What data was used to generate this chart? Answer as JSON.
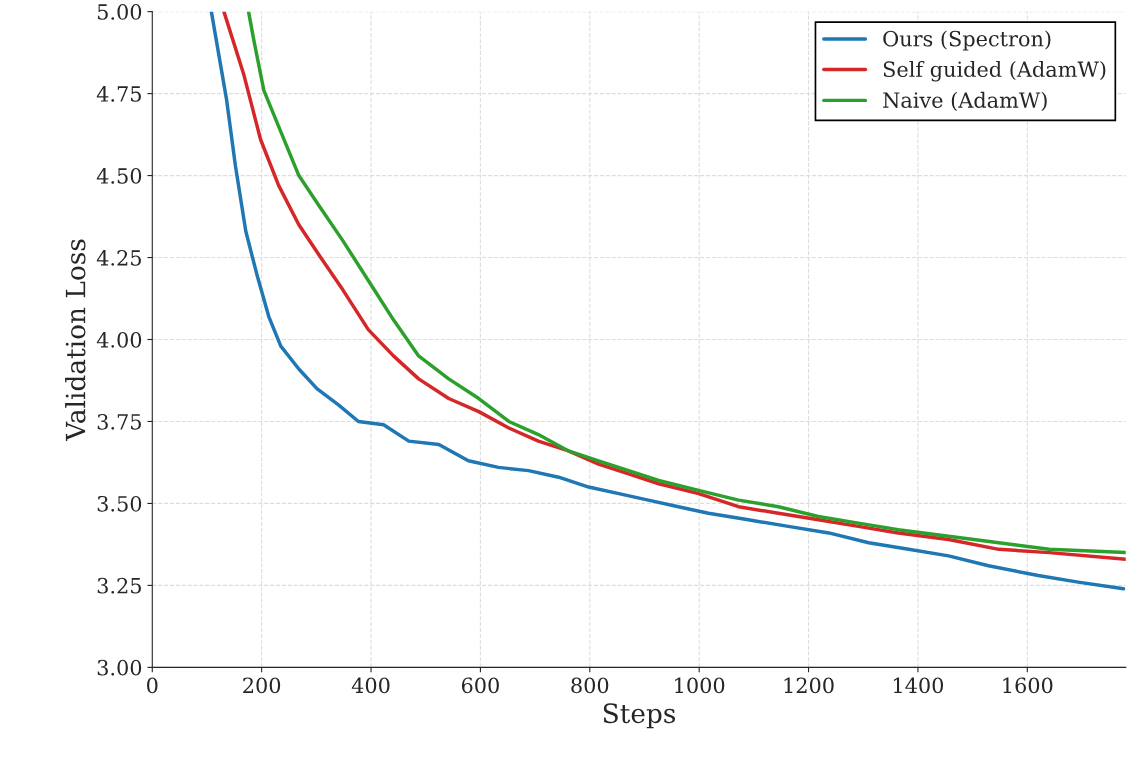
{
  "chart_data": {
    "type": "line",
    "xlabel": "Steps",
    "ylabel": "Validation Loss",
    "xlim": [
      0,
      1780
    ],
    "xticks": [
      0,
      200,
      400,
      600,
      800,
      1000,
      1200,
      1400,
      1600
    ],
    "ylim": [
      3.0,
      5.0
    ],
    "yticks": [
      {
        "value": 3.0,
        "label": "3.00"
      },
      {
        "value": 3.25,
        "label": "3.25"
      },
      {
        "value": 3.5,
        "label": "3.50"
      },
      {
        "value": 3.75,
        "label": "3.75"
      },
      {
        "value": 4.0,
        "label": "4.00"
      },
      {
        "value": 4.25,
        "label": "4.25"
      },
      {
        "value": 4.5,
        "label": "4.50"
      },
      {
        "value": 4.75,
        "label": "4.75"
      },
      {
        "value": 5.0,
        "label": "5.00"
      }
    ],
    "grid": true,
    "legend": "top right",
    "line_style": "solid",
    "series": [
      {
        "name": "Ours (Spectron)",
        "color": "#1f77b4",
        "x": [
          108,
          136,
          152,
          171,
          191,
          213,
          235,
          268,
          301,
          341,
          377,
          423,
          469,
          524,
          578,
          633,
          688,
          743,
          798,
          853,
          907,
          962,
          1017,
          1090,
          1163,
          1237,
          1310,
          1383,
          1456,
          1529,
          1620,
          1693,
          1776
        ],
        "values": [
          5.0,
          4.73,
          4.53,
          4.33,
          4.2,
          4.07,
          3.98,
          3.91,
          3.85,
          3.8,
          3.75,
          3.74,
          3.69,
          3.68,
          3.63,
          3.61,
          3.6,
          3.58,
          3.55,
          3.53,
          3.51,
          3.49,
          3.47,
          3.45,
          3.43,
          3.41,
          3.38,
          3.36,
          3.34,
          3.31,
          3.28,
          3.26,
          3.24
        ]
      },
      {
        "name": "Self guided (AdamW)",
        "color": "#d62728",
        "x": [
          131,
          167,
          198,
          231,
          268,
          304,
          349,
          395,
          441,
          487,
          542,
          597,
          652,
          706,
          761,
          816,
          871,
          926,
          999,
          1072,
          1145,
          1218,
          1291,
          1364,
          1456,
          1548,
          1640,
          1780
        ],
        "values": [
          5.0,
          4.81,
          4.61,
          4.47,
          4.35,
          4.26,
          4.15,
          4.03,
          3.95,
          3.88,
          3.82,
          3.78,
          3.73,
          3.69,
          3.66,
          3.62,
          3.59,
          3.56,
          3.53,
          3.49,
          3.47,
          3.45,
          3.43,
          3.41,
          3.39,
          3.36,
          3.35,
          3.33
        ]
      },
      {
        "name": "Naive (AdamW)",
        "color": "#2ca02c",
        "x": [
          176,
          186,
          204,
          231,
          268,
          304,
          349,
          395,
          441,
          487,
          542,
          597,
          652,
          706,
          761,
          816,
          871,
          926,
          999,
          1072,
          1145,
          1218,
          1291,
          1364,
          1456,
          1548,
          1640,
          1780
        ],
        "values": [
          5.0,
          4.91,
          4.76,
          4.65,
          4.5,
          4.41,
          4.3,
          4.18,
          4.06,
          3.95,
          3.88,
          3.82,
          3.75,
          3.71,
          3.66,
          3.63,
          3.6,
          3.57,
          3.54,
          3.51,
          3.49,
          3.46,
          3.44,
          3.42,
          3.4,
          3.38,
          3.36,
          3.35
        ]
      }
    ]
  }
}
